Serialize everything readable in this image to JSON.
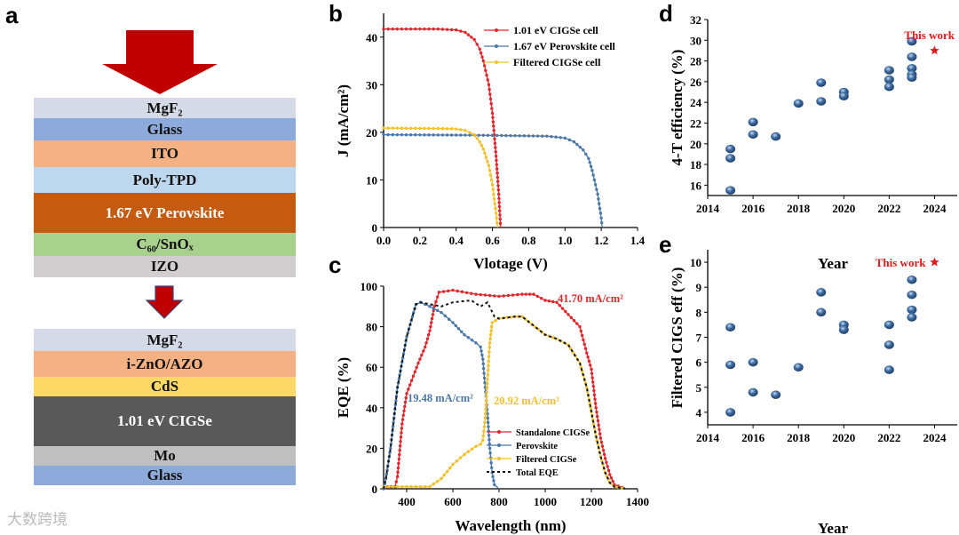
{
  "panel_letters": {
    "a": "a",
    "b": "b",
    "c": "c",
    "d": "d",
    "e": "e"
  },
  "watermark": "大数跨境",
  "perovskite_stack": [
    {
      "label": "MgF₂",
      "color": "#d6dae6"
    },
    {
      "label": "Glass",
      "color": "#8eaadb"
    },
    {
      "label": "ITO",
      "color": "#f4b183"
    },
    {
      "label": "Poly-TPD",
      "color": "#bdd7ee"
    },
    {
      "label": "1.67 eV Perovskite",
      "color": "#c55a11"
    },
    {
      "label": "C₆₀/SnOₓ",
      "color": "#a9d18e"
    },
    {
      "label": "IZO",
      "color": "#d0cece"
    }
  ],
  "cigs_stack": [
    {
      "label": "MgF₂",
      "color": "#d6dae6"
    },
    {
      "label": "i-ZnO/AZO",
      "color": "#f4b183"
    },
    {
      "label": "CdS",
      "color": "#ffd966"
    },
    {
      "label": "1.01 eV CIGSe",
      "color": "#595959"
    },
    {
      "label": "Mo",
      "color": "#bfbfbf"
    },
    {
      "label": "Glass",
      "color": "#8eaadb"
    }
  ],
  "arrow_color": "#c00000",
  "chart_data": [
    {
      "id": "b",
      "type": "line",
      "xlabel": "Vlotage (V)",
      "ylabel": "J (mA/cm²)",
      "xlim": [
        0,
        1.4
      ],
      "ylim": [
        0,
        45
      ],
      "xticks": [
        0.0,
        0.2,
        0.4,
        0.6,
        0.8,
        1.0,
        1.2,
        1.4
      ],
      "xtick_labels": [
        "0.0",
        "0.2",
        "0.4",
        "0.6",
        "0.8",
        "1.0",
        "1.2",
        "1.4"
      ],
      "yticks": [
        0,
        10,
        20,
        30,
        40
      ],
      "ytick_labels": [
        "0",
        "10",
        "20",
        "30",
        "40"
      ],
      "legend": "top-right",
      "series": [
        {
          "name": "1.01 eV CIGSe cell",
          "color": "#e0262b",
          "points": [
            [
              0,
              41.7
            ],
            [
              0.3,
              41.7
            ],
            [
              0.4,
              41.5
            ],
            [
              0.45,
              41
            ],
            [
              0.5,
              39.5
            ],
            [
              0.53,
              37.5
            ],
            [
              0.55,
              35
            ],
            [
              0.58,
              30
            ],
            [
              0.6,
              24
            ],
            [
              0.62,
              15
            ],
            [
              0.635,
              7
            ],
            [
              0.645,
              0
            ]
          ]
        },
        {
          "name": "1.67 eV Perovskite cell",
          "color": "#4a78a8",
          "points": [
            [
              0,
              19.5
            ],
            [
              0.5,
              19.4
            ],
            [
              0.9,
              19.2
            ],
            [
              1.0,
              18.8
            ],
            [
              1.05,
              18
            ],
            [
              1.1,
              16.3
            ],
            [
              1.13,
              14.5
            ],
            [
              1.15,
              12
            ],
            [
              1.18,
              7
            ],
            [
              1.2,
              2
            ],
            [
              1.205,
              0
            ]
          ]
        },
        {
          "name": "Filtered CIGSe cell",
          "color": "#f2c12e",
          "points": [
            [
              0,
              20.9
            ],
            [
              0.3,
              20.8
            ],
            [
              0.4,
              20.7
            ],
            [
              0.45,
              20.4
            ],
            [
              0.5,
              19.5
            ],
            [
              0.53,
              18
            ],
            [
              0.55,
              16.5
            ],
            [
              0.58,
              13
            ],
            [
              0.6,
              9
            ],
            [
              0.62,
              3
            ],
            [
              0.628,
              0
            ]
          ]
        }
      ]
    },
    {
      "id": "c",
      "type": "line",
      "xlabel": "Wavelength (nm)",
      "ylabel": "EQE (%)",
      "xlim": [
        300,
        1400
      ],
      "ylim": [
        0,
        100
      ],
      "xticks": [
        400,
        600,
        800,
        1000,
        1200,
        1400
      ],
      "xtick_labels": [
        "400",
        "600",
        "800",
        "1000",
        "1200",
        "1400"
      ],
      "yticks": [
        0,
        20,
        40,
        60,
        80,
        100
      ],
      "ytick_labels": [
        "0",
        "20",
        "40",
        "60",
        "80",
        "100"
      ],
      "legend": "bottom-center",
      "annotations": [
        {
          "text": "41.70 mA/cm²",
          "color": "#e0262b"
        },
        {
          "text": "19.48 mA/cm²",
          "color": "#4a78a8"
        },
        {
          "text": "20.92 mA/cm²",
          "color": "#f2c12e"
        }
      ],
      "series": [
        {
          "name": "Standalone CIGSe",
          "color": "#e0262b",
          "points": [
            [
              300,
              1
            ],
            [
              350,
              1
            ],
            [
              360,
              6
            ],
            [
              380,
              32
            ],
            [
              400,
              47
            ],
            [
              450,
              62
            ],
            [
              480,
              70
            ],
            [
              500,
              78
            ],
            [
              520,
              90
            ],
            [
              540,
              97
            ],
            [
              600,
              98
            ],
            [
              700,
              96
            ],
            [
              800,
              95
            ],
            [
              900,
              96
            ],
            [
              950,
              96
            ],
            [
              1000,
              93
            ],
            [
              1050,
              92
            ],
            [
              1100,
              86
            ],
            [
              1150,
              80
            ],
            [
              1180,
              67
            ],
            [
              1200,
              59
            ],
            [
              1220,
              40
            ],
            [
              1240,
              25
            ],
            [
              1260,
              15
            ],
            [
              1280,
              7
            ],
            [
              1300,
              2
            ],
            [
              1350,
              0
            ]
          ]
        },
        {
          "name": "Perovskite",
          "color": "#4a78a8",
          "points": [
            [
              300,
              0
            ],
            [
              310,
              5
            ],
            [
              330,
              20
            ],
            [
              360,
              50
            ],
            [
              400,
              75
            ],
            [
              440,
              91
            ],
            [
              460,
              92
            ],
            [
              500,
              90
            ],
            [
              550,
              87
            ],
            [
              600,
              82
            ],
            [
              650,
              76
            ],
            [
              700,
              72
            ],
            [
              720,
              70
            ],
            [
              730,
              64
            ],
            [
              740,
              50
            ],
            [
              750,
              37
            ],
            [
              760,
              20
            ],
            [
              770,
              8
            ],
            [
              780,
              2
            ],
            [
              800,
              0
            ]
          ]
        },
        {
          "name": "Filtered CIGSe",
          "color": "#f2c12e",
          "points": [
            [
              300,
              1
            ],
            [
              500,
              1
            ],
            [
              550,
              5
            ],
            [
              600,
              12
            ],
            [
              650,
              17
            ],
            [
              700,
              21
            ],
            [
              720,
              22
            ],
            [
              730,
              24
            ],
            [
              740,
              35
            ],
            [
              750,
              54
            ],
            [
              760,
              72
            ],
            [
              770,
              82
            ],
            [
              800,
              84
            ],
            [
              870,
              85
            ],
            [
              900,
              85
            ],
            [
              1000,
              76
            ],
            [
              1050,
              74
            ],
            [
              1100,
              71
            ],
            [
              1150,
              62
            ],
            [
              1180,
              50
            ],
            [
              1200,
              38
            ],
            [
              1220,
              26
            ],
            [
              1240,
              16
            ],
            [
              1260,
              8
            ],
            [
              1280,
              3
            ],
            [
              1300,
              1
            ],
            [
              1350,
              0
            ]
          ]
        },
        {
          "name": "Total EQE",
          "color": "#111111",
          "dashed": true,
          "points": [
            [
              300,
              0
            ],
            [
              310,
              5
            ],
            [
              330,
              20
            ],
            [
              360,
              50
            ],
            [
              400,
              75
            ],
            [
              440,
              91
            ],
            [
              460,
              92
            ],
            [
              550,
              90
            ],
            [
              600,
              92
            ],
            [
              680,
              93
            ],
            [
              720,
              90
            ],
            [
              750,
              92
            ],
            [
              780,
              85
            ],
            [
              800,
              84
            ],
            [
              870,
              85
            ],
            [
              900,
              85
            ],
            [
              1000,
              76
            ],
            [
              1050,
              74
            ],
            [
              1100,
              71
            ],
            [
              1150,
              62
            ],
            [
              1180,
              50
            ],
            [
              1200,
              38
            ],
            [
              1220,
              26
            ],
            [
              1240,
              16
            ],
            [
              1260,
              8
            ],
            [
              1280,
              3
            ],
            [
              1300,
              1
            ],
            [
              1350,
              0
            ]
          ]
        }
      ]
    },
    {
      "id": "d",
      "type": "scatter",
      "xlabel": "Year",
      "ylabel": "4-T efficiency (%)",
      "xlim": [
        2014,
        2025
      ],
      "ylim": [
        15,
        32
      ],
      "xticks": [
        2014,
        2016,
        2018,
        2020,
        2022,
        2024
      ],
      "xtick_labels": [
        "2014",
        "2016",
        "2018",
        "2020",
        "2022",
        "2024"
      ],
      "yticks": [
        16,
        18,
        20,
        22,
        24,
        26,
        28,
        30,
        32
      ],
      "ytick_labels": [
        "16",
        "18",
        "20",
        "22",
        "24",
        "26",
        "28",
        "30",
        "32"
      ],
      "points": [
        [
          2015,
          19.5
        ],
        [
          2015,
          18.6
        ],
        [
          2015,
          15.5
        ],
        [
          2016,
          22.1
        ],
        [
          2016,
          20.9
        ],
        [
          2017,
          20.7
        ],
        [
          2018,
          23.9
        ],
        [
          2019,
          25.9
        ],
        [
          2019,
          24.1
        ],
        [
          2020,
          25.0
        ],
        [
          2020,
          24.6
        ],
        [
          2022,
          27.1
        ],
        [
          2022,
          26.2
        ],
        [
          2022,
          25.5
        ],
        [
          2023,
          29.9
        ],
        [
          2023,
          28.4
        ],
        [
          2023,
          27.3
        ],
        [
          2023,
          26.7
        ],
        [
          2023,
          26.4
        ]
      ],
      "point_color": "#3f6ea3",
      "highlight": {
        "label": "This work",
        "x": 2024,
        "y": 29.0,
        "color": "#e01b1b"
      }
    },
    {
      "id": "e",
      "type": "scatter",
      "xlabel": "Year",
      "ylabel": "Filtered CIGS eff (%)",
      "xlim": [
        2014,
        2025
      ],
      "ylim": [
        3.5,
        10.5
      ],
      "xticks": [
        2014,
        2016,
        2018,
        2020,
        2022,
        2024
      ],
      "xtick_labels": [
        "2014",
        "2016",
        "2018",
        "2020",
        "2022",
        "2024"
      ],
      "yticks": [
        4,
        5,
        6,
        7,
        8,
        9,
        10
      ],
      "ytick_labels": [
        "4",
        "5",
        "6",
        "7",
        "8",
        "9",
        "10"
      ],
      "points": [
        [
          2015,
          7.4
        ],
        [
          2015,
          5.9
        ],
        [
          2015,
          4.0
        ],
        [
          2016,
          6.0
        ],
        [
          2016,
          4.8
        ],
        [
          2017,
          4.7
        ],
        [
          2018,
          5.8
        ],
        [
          2019,
          8.8
        ],
        [
          2019,
          8.0
        ],
        [
          2020,
          7.5
        ],
        [
          2020,
          7.3
        ],
        [
          2022,
          7.5
        ],
        [
          2022,
          6.7
        ],
        [
          2022,
          5.7
        ],
        [
          2023,
          9.3
        ],
        [
          2023,
          8.7
        ],
        [
          2023,
          8.1
        ],
        [
          2023,
          7.8
        ]
      ],
      "point_color": "#3f6ea3",
      "highlight": {
        "label": "This work",
        "x": 2024,
        "y": 10.0,
        "color": "#e01b1b"
      }
    }
  ]
}
